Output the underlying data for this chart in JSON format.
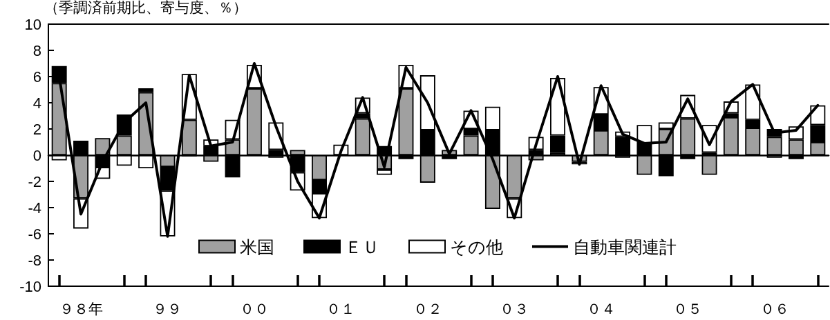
{
  "chart_data": {
    "type": "bar",
    "stacked": true,
    "ylabel": "（季調済前期比、寄与度、％）",
    "categories": [
      null,
      "９８年",
      null,
      null,
      null,
      "９９",
      null,
      null,
      null,
      "００",
      null,
      null,
      null,
      "０１",
      null,
      null,
      null,
      "０２",
      null,
      null,
      null,
      "０３",
      null,
      null,
      null,
      "０４",
      null,
      null,
      null,
      "０５",
      null,
      null,
      null,
      "０６",
      null,
      null
    ],
    "series": [
      {
        "name": "米国",
        "color": "#a0a0a0",
        "values": [
          5.5,
          -3.3,
          1.3,
          1.5,
          4.8,
          -0.9,
          2.7,
          -0.5,
          1.2,
          5.1,
          -0.2,
          0.4,
          -1.9,
          null,
          2.8,
          -1.1,
          5.1,
          -2.1,
          0.4,
          1.5,
          -4.1,
          -3.3,
          -0.4,
          0.2,
          -0.5,
          1.9,
          -0.2,
          -1.5,
          2.0,
          2.8,
          -1.5,
          2.9,
          2.1,
          1.4,
          1.2,
          1.0
        ]
      },
      {
        "name": "ＥＵ",
        "color": "#000000",
        "values": [
          1.3,
          1.1,
          -0.9,
          1.6,
          0.3,
          -1.8,
          -0.1,
          0.7,
          -1.7,
          null,
          0.4,
          -1.3,
          -1.0,
          null,
          0.4,
          0.7,
          -0.3,
          1.9,
          -0.3,
          0.5,
          1.9,
          null,
          0.4,
          1.3,
          null,
          1.2,
          1.4,
          0.9,
          -1.6,
          -0.3,
          0.2,
          0.3,
          0.6,
          0.6,
          -0.3,
          1.3
        ]
      },
      {
        "name": "その他",
        "color": "#ffffff",
        "values": [
          -0.4,
          -2.3,
          -0.9,
          -0.8,
          -1.0,
          -3.5,
          3.5,
          0.5,
          1.5,
          1.8,
          2.1,
          -1.4,
          -1.9,
          0.8,
          1.2,
          -0.4,
          1.8,
          4.2,
          null,
          1.4,
          1.8,
          -1.5,
          1.0,
          4.4,
          -0.2,
          2.1,
          0.4,
          1.4,
          0.5,
          1.8,
          2.1,
          0.9,
          2.7,
          -0.2,
          1.0,
          1.5
        ]
      },
      {
        "name": "自動車関連計",
        "type": "line",
        "color": "#000000",
        "values": [
          6.0,
          -4.5,
          -0.5,
          2.5,
          4.0,
          -6.2,
          6.1,
          0.7,
          1.0,
          7.0,
          2.2,
          -2.0,
          -4.8,
          0.3,
          4.4,
          -0.9,
          6.7,
          4.0,
          0.1,
          3.4,
          -0.3,
          -4.8,
          0.8,
          6.0,
          -0.7,
          5.3,
          1.6,
          0.9,
          1.0,
          4.3,
          0.8,
          4.1,
          5.4,
          1.7,
          1.9,
          3.8
        ]
      }
    ],
    "ylim": [
      -10,
      10
    ],
    "yticks": [
      -10,
      -8,
      -6,
      -4,
      -2,
      0,
      2,
      4,
      6,
      8,
      10
    ],
    "legend": "bottom",
    "marker": "none"
  }
}
